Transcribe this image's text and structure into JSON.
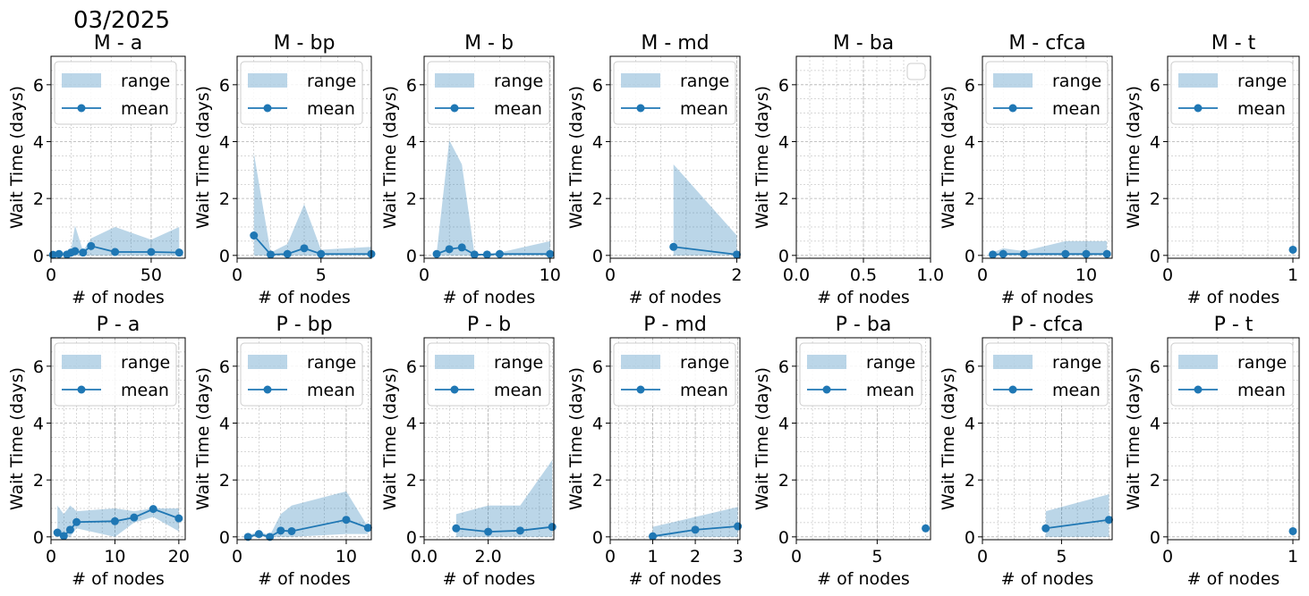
{
  "figure_title": "03/2025",
  "colors": {
    "mean": "#1f77b4",
    "range_fill": "#1f77b4",
    "grid": "#b0b0b0"
  },
  "chart_data": [
    {
      "type": "line",
      "title": "M -  a",
      "xlabel": "# of nodes",
      "ylabel": "Wait Time (days)",
      "xlim": [
        0,
        67
      ],
      "ylim": [
        -0.1,
        7
      ],
      "xticks": [
        0,
        50
      ],
      "xtick_labels": [
        "0",
        "50"
      ],
      "yticks": [
        0,
        2,
        4,
        6
      ],
      "ytick_labels": [
        "0",
        "2",
        "4",
        "6"
      ],
      "legend": [
        "range",
        "mean"
      ],
      "x": [
        1,
        4,
        8,
        10,
        12,
        16,
        20,
        32,
        50,
        64
      ],
      "mean": [
        0.02,
        0.05,
        0.03,
        0.1,
        0.15,
        0.1,
        0.33,
        0.12,
        0.12,
        0.1
      ],
      "range_min": [
        0,
        0,
        0,
        0,
        0,
        0,
        0,
        0,
        0,
        0
      ],
      "range_max": [
        0.05,
        0.1,
        0.12,
        0.2,
        1.05,
        0.15,
        0.6,
        1.0,
        0.55,
        1.0
      ]
    },
    {
      "type": "line",
      "title": "M -  bp",
      "xlabel": "# of nodes",
      "ylabel": "Wait Time (days)",
      "xlim": [
        0,
        8
      ],
      "ylim": [
        -0.1,
        7
      ],
      "xticks": [
        0,
        5
      ],
      "xtick_labels": [
        "0",
        "5"
      ],
      "yticks": [
        0,
        2,
        4,
        6
      ],
      "ytick_labels": [
        "0",
        "2",
        "4",
        "6"
      ],
      "legend": [
        "range",
        "mean"
      ],
      "x": [
        1,
        2,
        3,
        4,
        5,
        8
      ],
      "mean": [
        0.7,
        0.03,
        0.05,
        0.25,
        0.05,
        0.05
      ],
      "range_min": [
        0,
        0,
        0,
        0,
        0,
        0
      ],
      "range_max": [
        3.6,
        0.1,
        0.4,
        1.8,
        0.2,
        0.3
      ]
    },
    {
      "type": "line",
      "title": "M -  b",
      "xlabel": "# of nodes",
      "ylabel": "Wait Time (days)",
      "xlim": [
        0,
        10.3
      ],
      "ylim": [
        -0.1,
        7
      ],
      "xticks": [
        0,
        10
      ],
      "xtick_labels": [
        "0",
        "10"
      ],
      "yticks": [
        0,
        2,
        4,
        6
      ],
      "ytick_labels": [
        "0",
        "2",
        "4",
        "6"
      ],
      "legend": [
        "range",
        "mean"
      ],
      "x": [
        1,
        2,
        3,
        4,
        5,
        6,
        10
      ],
      "mean": [
        0.05,
        0.22,
        0.28,
        0.03,
        0.03,
        0.05,
        0.05
      ],
      "range_min": [
        0,
        0,
        0,
        0,
        0,
        0,
        0
      ],
      "range_max": [
        0.1,
        4.05,
        3.2,
        0.05,
        0.05,
        0.1,
        0.5
      ]
    },
    {
      "type": "line",
      "title": "M -  md",
      "xlabel": "# of nodes",
      "ylabel": "Wait Time (days)",
      "xlim": [
        0,
        2.05
      ],
      "ylim": [
        -0.1,
        7
      ],
      "xticks": [
        0,
        2
      ],
      "xtick_labels": [
        "0",
        "2"
      ],
      "yticks": [
        0,
        2,
        4,
        6
      ],
      "ytick_labels": [
        "0",
        "2",
        "4",
        "6"
      ],
      "legend": [
        "range",
        "mean"
      ],
      "x": [
        1,
        2
      ],
      "mean": [
        0.3,
        0.03
      ],
      "range_min": [
        0,
        0
      ],
      "range_max": [
        3.2,
        0.7
      ]
    },
    {
      "type": "line",
      "title": "M -  ba",
      "xlabel": "# of nodes",
      "ylabel": "Wait Time (days)",
      "xlim": [
        0,
        1
      ],
      "ylim": [
        -0.1,
        7
      ],
      "xticks": [
        0,
        0.5,
        1
      ],
      "xtick_labels": [
        "0.0",
        "0.5",
        "1.0"
      ],
      "yticks": [
        0,
        2,
        4,
        6
      ],
      "ytick_labels": [
        "0",
        "2",
        "4",
        "6"
      ],
      "legend": [],
      "x": [],
      "mean": [],
      "range_min": [],
      "range_max": []
    },
    {
      "type": "line",
      "title": "M -  cfca",
      "xlabel": "# of nodes",
      "ylabel": "Wait Time (days)",
      "xlim": [
        0,
        12.5
      ],
      "ylim": [
        -0.1,
        7
      ],
      "xticks": [
        0,
        10
      ],
      "xtick_labels": [
        "0",
        "10"
      ],
      "yticks": [
        0,
        2,
        4,
        6
      ],
      "ytick_labels": [
        "0",
        "2",
        "4",
        "6"
      ],
      "legend": [
        "range",
        "mean"
      ],
      "x": [
        1,
        2,
        4,
        8,
        10,
        12
      ],
      "mean": [
        0.03,
        0.05,
        0.05,
        0.05,
        0.05,
        0.05
      ],
      "range_min": [
        0,
        0,
        0,
        0,
        0,
        0
      ],
      "range_max": [
        0.1,
        0.25,
        0.15,
        0.5,
        0.5,
        0.5
      ]
    },
    {
      "type": "line",
      "title": "M -  t",
      "xlabel": "# of nodes",
      "ylabel": "Wait Time (days)",
      "xlim": [
        0,
        1.05
      ],
      "ylim": [
        -0.1,
        7
      ],
      "xticks": [
        0,
        1
      ],
      "xtick_labels": [
        "0",
        "1"
      ],
      "yticks": [
        0,
        2,
        4,
        6
      ],
      "ytick_labels": [
        "0",
        "2",
        "4",
        "6"
      ],
      "legend": [
        "range",
        "mean"
      ],
      "x": [
        1
      ],
      "mean": [
        0.2
      ],
      "range_min": [
        0.2
      ],
      "range_max": [
        0.2
      ]
    },
    {
      "type": "line",
      "title": "P -  a",
      "xlabel": "# of nodes",
      "ylabel": "Wait Time (days)",
      "xlim": [
        0,
        21
      ],
      "ylim": [
        -0.1,
        7
      ],
      "xticks": [
        0,
        10,
        20
      ],
      "xtick_labels": [
        "0",
        "10",
        "20"
      ],
      "yticks": [
        0,
        2,
        4,
        6
      ],
      "ytick_labels": [
        "0",
        "2",
        "4",
        "6"
      ],
      "legend": [
        "range",
        "mean"
      ],
      "x": [
        1,
        2,
        3,
        4,
        10,
        13,
        16,
        20
      ],
      "mean": [
        0.15,
        0.03,
        0.25,
        0.52,
        0.55,
        0.68,
        0.98,
        0.65
      ],
      "range_min": [
        0,
        0,
        0,
        0.3,
        0,
        0.5,
        0.7,
        0.2
      ],
      "range_max": [
        1.1,
        0.8,
        1.1,
        0.9,
        1.0,
        0.9,
        1.0,
        1.0
      ]
    },
    {
      "type": "line",
      "title": "P -  bp",
      "xlabel": "# of nodes",
      "ylabel": "Wait Time (days)",
      "xlim": [
        0,
        12.3
      ],
      "ylim": [
        -0.1,
        7
      ],
      "xticks": [
        0,
        10
      ],
      "xtick_labels": [
        "0",
        "10"
      ],
      "yticks": [
        0,
        2,
        4,
        6
      ],
      "ytick_labels": [
        "0",
        "2",
        "4",
        "6"
      ],
      "legend": [
        "range",
        "mean"
      ],
      "x": [
        1,
        2,
        3,
        4,
        5,
        10,
        12
      ],
      "mean": [
        0.0,
        0.1,
        0.0,
        0.22,
        0.2,
        0.6,
        0.32
      ],
      "range_min": [
        0,
        0,
        0,
        0,
        0,
        0.1,
        0.1
      ],
      "range_max": [
        0.05,
        0.2,
        0.05,
        0.8,
        1.1,
        1.6,
        0.35
      ]
    },
    {
      "type": "line",
      "title": "P -  b",
      "xlabel": "# of nodes",
      "ylabel": "Wait Time (days)",
      "xlim": [
        0,
        4.05
      ],
      "ylim": [
        -0.1,
        7
      ],
      "xticks": [
        0,
        2
      ],
      "xtick_labels": [
        "0.0",
        "2.0"
      ],
      "yticks": [
        0,
        2,
        4,
        6
      ],
      "ytick_labels": [
        "0",
        "2",
        "4",
        "6"
      ],
      "legend": [
        "range",
        "mean"
      ],
      "x": [
        1,
        2,
        3,
        4
      ],
      "mean": [
        0.3,
        0.18,
        0.22,
        0.35
      ],
      "range_min": [
        0,
        0,
        0,
        0
      ],
      "range_max": [
        0.8,
        1.1,
        1.1,
        2.7
      ]
    },
    {
      "type": "line",
      "title": "P -  md",
      "xlabel": "# of nodes",
      "ylabel": "Wait Time (days)",
      "xlim": [
        0,
        3.05
      ],
      "ylim": [
        -0.1,
        7
      ],
      "xticks": [
        0,
        1,
        2,
        3
      ],
      "xtick_labels": [
        "0",
        "1",
        "2",
        "3"
      ],
      "yticks": [
        0,
        2,
        4,
        6
      ],
      "ytick_labels": [
        "0",
        "2",
        "4",
        "6"
      ],
      "legend": [
        "range",
        "mean"
      ],
      "x": [
        1,
        2,
        3
      ],
      "mean": [
        0.02,
        0.25,
        0.37
      ],
      "range_min": [
        0,
        0,
        0
      ],
      "range_max": [
        0.35,
        0.7,
        1.05
      ]
    },
    {
      "type": "line",
      "title": "P -  ba",
      "xlabel": "# of nodes",
      "ylabel": "Wait Time (days)",
      "xlim": [
        0,
        8.3
      ],
      "ylim": [
        -0.1,
        7
      ],
      "xticks": [
        0,
        5
      ],
      "xtick_labels": [
        "0",
        "5"
      ],
      "yticks": [
        0,
        2,
        4,
        6
      ],
      "ytick_labels": [
        "0",
        "2",
        "4",
        "6"
      ],
      "legend": [
        "range",
        "mean"
      ],
      "x": [
        8
      ],
      "mean": [
        0.3
      ],
      "range_min": [
        0.3
      ],
      "range_max": [
        0.3
      ]
    },
    {
      "type": "line",
      "title": "P -  cfca",
      "xlabel": "# of nodes",
      "ylabel": "Wait Time (days)",
      "xlim": [
        0,
        8.2
      ],
      "ylim": [
        -0.1,
        7
      ],
      "xticks": [
        0,
        5
      ],
      "xtick_labels": [
        "0",
        "5"
      ],
      "yticks": [
        0,
        2,
        4,
        6
      ],
      "ytick_labels": [
        "0",
        "2",
        "4",
        "6"
      ],
      "legend": [
        "range",
        "mean"
      ],
      "x": [
        4,
        8
      ],
      "mean": [
        0.3,
        0.6
      ],
      "range_min": [
        0,
        0
      ],
      "range_max": [
        0.9,
        1.5
      ]
    },
    {
      "type": "line",
      "title": "P -  t",
      "xlabel": "# of nodes",
      "ylabel": "Wait Time (days)",
      "xlim": [
        0,
        1.05
      ],
      "ylim": [
        -0.1,
        7
      ],
      "xticks": [
        0,
        1
      ],
      "xtick_labels": [
        "0",
        "1"
      ],
      "yticks": [
        0,
        2,
        4,
        6
      ],
      "ytick_labels": [
        "0",
        "2",
        "4",
        "6"
      ],
      "legend": [
        "range",
        "mean"
      ],
      "x": [
        1
      ],
      "mean": [
        0.2
      ],
      "range_min": [
        0.2
      ],
      "range_max": [
        0.2
      ]
    }
  ]
}
